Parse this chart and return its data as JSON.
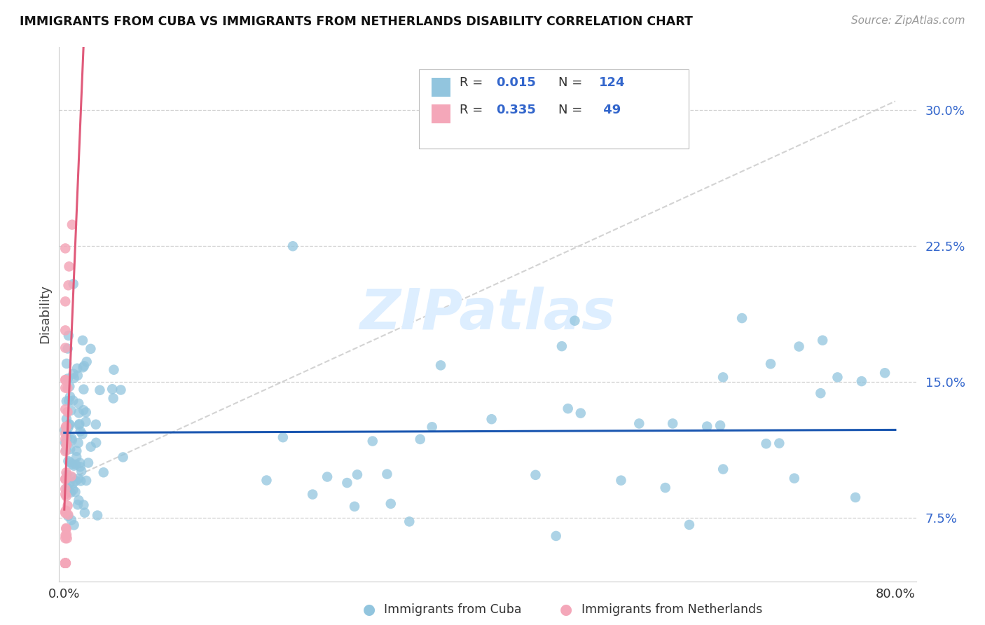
{
  "title": "IMMIGRANTS FROM CUBA VS IMMIGRANTS FROM NETHERLANDS DISABILITY CORRELATION CHART",
  "source": "Source: ZipAtlas.com",
  "ylabel": "Disability",
  "xlim": [
    0.0,
    0.8
  ],
  "ylim": [
    0.04,
    0.335
  ],
  "yticks": [
    0.075,
    0.15,
    0.225,
    0.3
  ],
  "xticks": [
    0.0,
    0.2,
    0.4,
    0.6,
    0.8
  ],
  "xtick_labels": [
    "0.0%",
    "",
    "",
    "",
    "80.0%"
  ],
  "cuba_color": "#92c5de",
  "netherlands_color": "#f4a7b9",
  "cuba_line_color": "#1a56b0",
  "netherlands_line_color": "#e05a7a",
  "diag_line_color": "#c8c8c8",
  "background_color": "#ffffff",
  "watermark_color": "#ddeeff",
  "legend_blue_color": "#3366cc",
  "cuba_r": "0.015",
  "cuba_n": "124",
  "neth_r": "0.335",
  "neth_n": " 49"
}
